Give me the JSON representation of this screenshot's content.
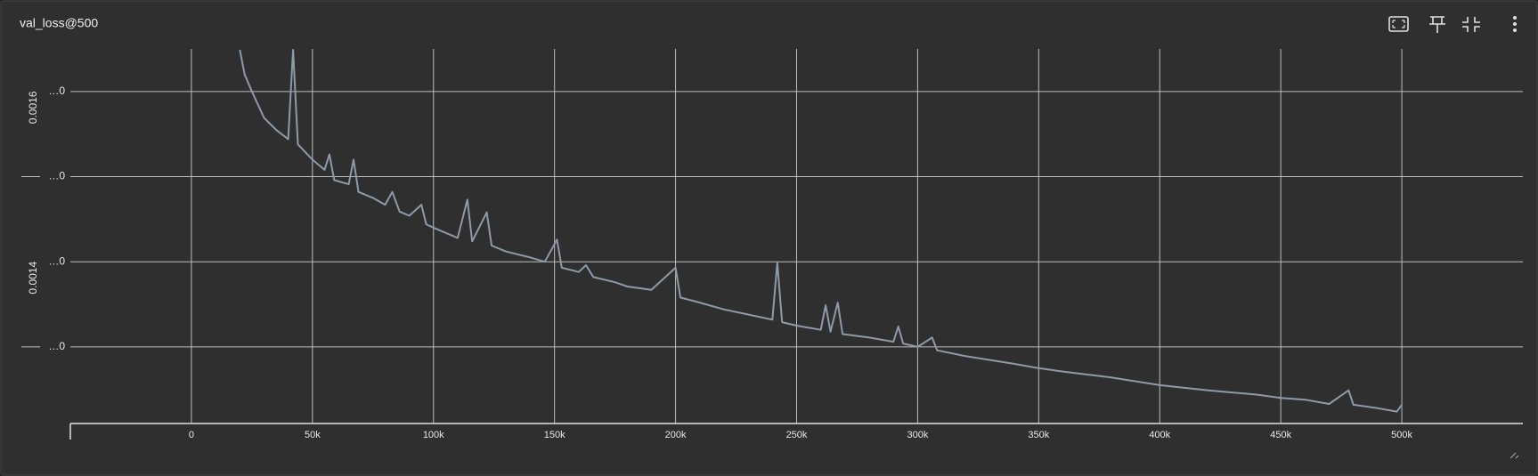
{
  "chart_data": {
    "type": "line",
    "title": "val_loss@500",
    "x": [
      20000,
      22000,
      25000,
      30000,
      35000,
      40000,
      42000,
      44000,
      50000,
      55000,
      57000,
      59000,
      65000,
      67000,
      69000,
      75000,
      80000,
      83000,
      86000,
      90000,
      95000,
      97000,
      100000,
      105000,
      110000,
      114000,
      116000,
      122000,
      124000,
      130000,
      140000,
      146000,
      151000,
      153000,
      160000,
      163000,
      166000,
      175000,
      180000,
      190000,
      200000,
      202000,
      210000,
      220000,
      230000,
      240000,
      242000,
      244000,
      250000,
      260000,
      262000,
      264000,
      267000,
      269000,
      280000,
      290000,
      292000,
      294000,
      300000,
      306000,
      308000,
      320000,
      340000,
      350000,
      360000,
      380000,
      400000,
      420000,
      440000,
      450000,
      460000,
      470000,
      478000,
      480000,
      490000,
      498000,
      500000
    ],
    "series": [
      {
        "color": "#8f9aa6",
        "values": [
          0.001649,
          0.00162,
          0.0016,
          0.001569,
          0.001555,
          0.001544,
          0.001649,
          0.001538,
          0.00152,
          0.001508,
          0.001526,
          0.001496,
          0.001491,
          0.00152,
          0.001482,
          0.001475,
          0.001467,
          0.001482,
          0.001459,
          0.001454,
          0.001467,
          0.001444,
          0.00144,
          0.001434,
          0.001428,
          0.001473,
          0.001424,
          0.001458,
          0.001419,
          0.001412,
          0.001405,
          0.0014,
          0.001426,
          0.001393,
          0.001388,
          0.001396,
          0.001382,
          0.001376,
          0.001371,
          0.001367,
          0.001393,
          0.001358,
          0.001352,
          0.001344,
          0.001338,
          0.001332,
          0.001399,
          0.001329,
          0.001325,
          0.00132,
          0.001349,
          0.001318,
          0.001352,
          0.001315,
          0.001311,
          0.001306,
          0.001324,
          0.001304,
          0.0013,
          0.001311,
          0.001296,
          0.001289,
          0.00128,
          0.001275,
          0.001271,
          0.001264,
          0.001255,
          0.001249,
          0.001244,
          0.00124,
          0.001238,
          0.001233,
          0.001249,
          0.001232,
          0.001228,
          0.001224,
          0.001232
        ]
      }
    ],
    "xlim": [
      -50000,
      550000
    ],
    "xticks": [
      {
        "value": 0,
        "label": "0"
      },
      {
        "value": 50000,
        "label": "50k"
      },
      {
        "value": 100000,
        "label": "100k"
      },
      {
        "value": 150000,
        "label": "150k"
      },
      {
        "value": 200000,
        "label": "200k"
      },
      {
        "value": 250000,
        "label": "250k"
      },
      {
        "value": 300000,
        "label": "300k"
      },
      {
        "value": 350000,
        "label": "350k"
      },
      {
        "value": 400000,
        "label": "400k"
      },
      {
        "value": 450000,
        "label": "450k"
      },
      {
        "value": 500000,
        "label": "500k"
      }
    ],
    "ylim": [
      0.00121,
      0.00165
    ],
    "yticks": [
      {
        "value": 0.0016,
        "label": "…0"
      },
      {
        "value": 0.0015,
        "label": "…0"
      },
      {
        "value": 0.0014,
        "label": "…0"
      },
      {
        "value": 0.0013,
        "label": "…0"
      }
    ],
    "y_full_labels": [
      {
        "value": 0.0016,
        "label": "0.0016"
      },
      {
        "value": 0.0014,
        "label": "0.0014"
      }
    ],
    "grid": true
  }
}
